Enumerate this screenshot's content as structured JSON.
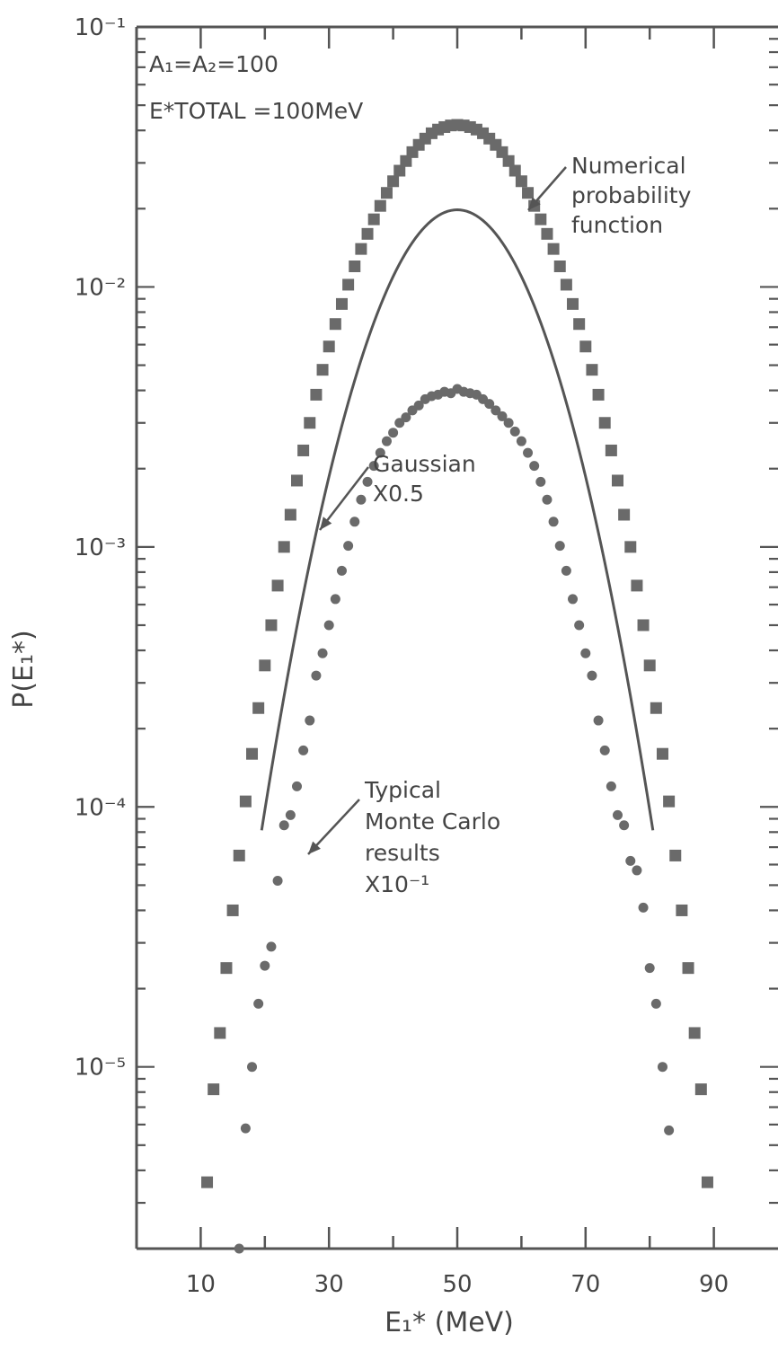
{
  "chart_data": {
    "type": "scatter",
    "title": "",
    "xlabel": "E₁* (MeV)",
    "ylabel": "P(E₁*)",
    "xlim": [
      0,
      100
    ],
    "ylim": [
      2e-06,
      0.1
    ],
    "yscale": "log",
    "x_tick_labels": [
      "10",
      "30",
      "50",
      "70",
      "90"
    ],
    "x_ticks": [
      10,
      30,
      50,
      70,
      90
    ],
    "y_tick_labels": [
      "10⁻¹",
      "10⁻²",
      "10⁻³",
      "10⁻⁴",
      "10⁻⁵"
    ],
    "y_ticks": [
      0.1,
      0.01,
      0.001,
      0.0001,
      1e-05
    ],
    "params": {
      "line1": "A₁=A₂=100",
      "line2": "E*TOTAL =100MeV"
    },
    "annotations": [
      {
        "lines": [
          "Numerical",
          "probability",
          "function"
        ],
        "target_series": "numerical"
      },
      {
        "lines": [
          "Gaussian",
          "X0.5"
        ],
        "target_series": "gaussian"
      },
      {
        "lines": [
          "Typical",
          "Monte Carlo",
          "results",
          "X10⁻¹"
        ],
        "target_series": "montecarlo"
      }
    ],
    "series": [
      {
        "key": "numerical",
        "marker": "square",
        "x": [
          11,
          12,
          13,
          14,
          15,
          16,
          17,
          18,
          19,
          20,
          21,
          22,
          23,
          24,
          25,
          26,
          27,
          28,
          29,
          30,
          31,
          32,
          33,
          34,
          35,
          36,
          37,
          38,
          39,
          40,
          41,
          42,
          43,
          44,
          45,
          46,
          47,
          48,
          49,
          50,
          51,
          52,
          53,
          54,
          55,
          56,
          57,
          58,
          59,
          60,
          61,
          62,
          63,
          64,
          65,
          66,
          67,
          68,
          69,
          70,
          71,
          72,
          73,
          74,
          75,
          76,
          77,
          78,
          79,
          80,
          81,
          82,
          83,
          84,
          85,
          86,
          87,
          88,
          89
        ],
        "y": [
          3.6e-06,
          8.2e-06,
          1.35e-05,
          2.4e-05,
          4e-05,
          6.5e-05,
          0.000105,
          0.00016,
          0.00024,
          0.00035,
          0.0005,
          0.00071,
          0.001,
          0.00133,
          0.0018,
          0.00235,
          0.003,
          0.00385,
          0.0048,
          0.0059,
          0.0072,
          0.0086,
          0.0102,
          0.012,
          0.014,
          0.016,
          0.0182,
          0.0205,
          0.023,
          0.0255,
          0.028,
          0.0305,
          0.033,
          0.0352,
          0.0372,
          0.039,
          0.0403,
          0.0412,
          0.0418,
          0.042,
          0.0418,
          0.0412,
          0.0403,
          0.039,
          0.0372,
          0.0352,
          0.033,
          0.0305,
          0.028,
          0.0255,
          0.023,
          0.0205,
          0.0182,
          0.016,
          0.014,
          0.012,
          0.0102,
          0.0086,
          0.0072,
          0.0059,
          0.0048,
          0.00385,
          0.003,
          0.00235,
          0.0018,
          0.00133,
          0.001,
          0.00071,
          0.0005,
          0.00035,
          0.00024,
          0.00016,
          0.000105,
          6.5e-05,
          4e-05,
          2.4e-05,
          1.35e-05,
          8.2e-06,
          3.6e-06
        ]
      },
      {
        "key": "gaussian",
        "marker": "line",
        "mean": 50,
        "peak": 0.0198,
        "x_range": [
          19.5,
          80.5
        ]
      },
      {
        "key": "montecarlo",
        "marker": "circle",
        "x": [
          16,
          17,
          18,
          19,
          20,
          21,
          22,
          23,
          24,
          25,
          26,
          27,
          28,
          29,
          30,
          31,
          32,
          33,
          34,
          35,
          36,
          37,
          38,
          39,
          40,
          41,
          42,
          43,
          44,
          45,
          46,
          47,
          48,
          49,
          50,
          51,
          52,
          53,
          54,
          55,
          56,
          57,
          58,
          59,
          60,
          61,
          62,
          63,
          64,
          65,
          66,
          67,
          68,
          69,
          70,
          71,
          72,
          73,
          74,
          75,
          76,
          77,
          78,
          79,
          80,
          81,
          82,
          83
        ],
        "y": [
          2e-06,
          5.8e-06,
          1e-05,
          1.75e-05,
          2.45e-05,
          2.9e-05,
          5.2e-05,
          8.5e-05,
          9.3e-05,
          0.00012,
          0.000165,
          0.000215,
          0.00032,
          0.00039,
          0.0005,
          0.00063,
          0.00081,
          0.00101,
          0.00125,
          0.00152,
          0.00178,
          0.00205,
          0.0023,
          0.00255,
          0.00275,
          0.003,
          0.00315,
          0.00335,
          0.0035,
          0.0037,
          0.0038,
          0.00385,
          0.00395,
          0.0039,
          0.00405,
          0.00395,
          0.0039,
          0.00385,
          0.0037,
          0.00355,
          0.00335,
          0.00318,
          0.003,
          0.00278,
          0.00255,
          0.0023,
          0.00205,
          0.00178,
          0.00152,
          0.00125,
          0.00101,
          0.00081,
          0.00063,
          0.0005,
          0.00039,
          0.00032,
          0.000215,
          0.000165,
          0.00012,
          9.3e-05,
          8.5e-05,
          6.2e-05,
          5.7e-05,
          4.1e-05,
          2.4e-05,
          1.75e-05,
          1e-05,
          5.7e-06
        ]
      }
    ]
  }
}
